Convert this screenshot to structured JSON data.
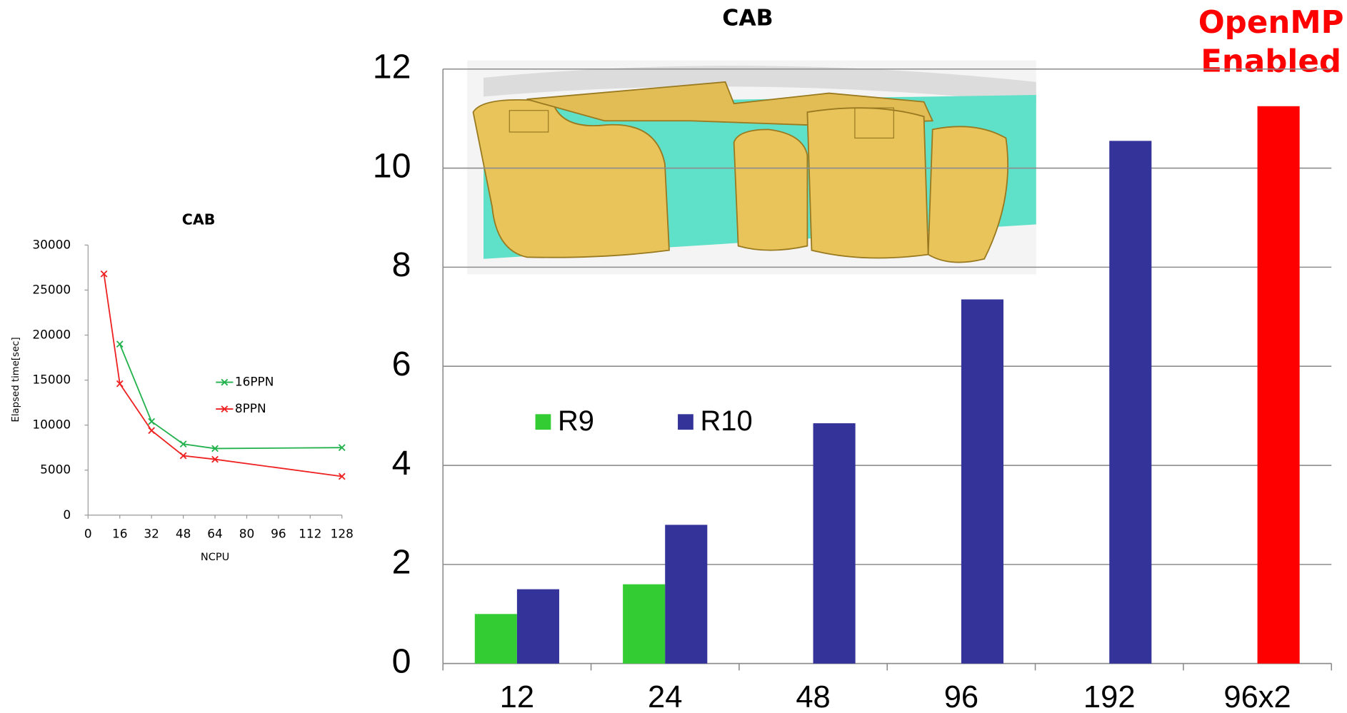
{
  "chart_data": [
    {
      "type": "line",
      "title": "CAB",
      "x_label": "NCPU",
      "y_label": "Elapsed time[sec]",
      "xlim": [
        0,
        128
      ],
      "xticks": [
        0,
        16,
        32,
        48,
        64,
        80,
        96,
        112,
        128
      ],
      "ylim": [
        0,
        30000
      ],
      "yticks": [
        0,
        5000,
        10000,
        15000,
        20000,
        25000,
        30000
      ],
      "series": [
        {
          "name": "16PPN",
          "color": "#22b14c",
          "x": [
            16,
            32,
            48,
            64,
            128
          ],
          "values": [
            19000,
            10400,
            7900,
            7400,
            7500
          ]
        },
        {
          "name": "8PPN",
          "color": "#ee2222",
          "x": [
            8,
            16,
            32,
            48,
            64,
            128
          ],
          "values": [
            26800,
            14600,
            9400,
            6600,
            6200,
            4300
          ]
        }
      ]
    },
    {
      "type": "bar",
      "title": "CAB",
      "annotation": [
        "OpenMP",
        "Enabled"
      ],
      "annotation_color": "#ff0000",
      "categories": [
        "12",
        "24",
        "48",
        "96",
        "192",
        "96x2"
      ],
      "ylim": [
        0,
        12
      ],
      "yticks": [
        0,
        2,
        4,
        6,
        8,
        10,
        12
      ],
      "grid": true,
      "series": [
        {
          "name": "R9",
          "color": "#33cc33",
          "values": [
            1.0,
            1.6,
            null,
            null,
            null,
            null
          ]
        },
        {
          "name": "R10",
          "color": "#333399",
          "values": [
            1.5,
            2.8,
            4.85,
            7.35,
            10.55,
            11.25
          ],
          "colors": [
            "#333399",
            "#333399",
            "#333399",
            "#333399",
            "#333399",
            "#ff0000"
          ]
        }
      ]
    }
  ]
}
